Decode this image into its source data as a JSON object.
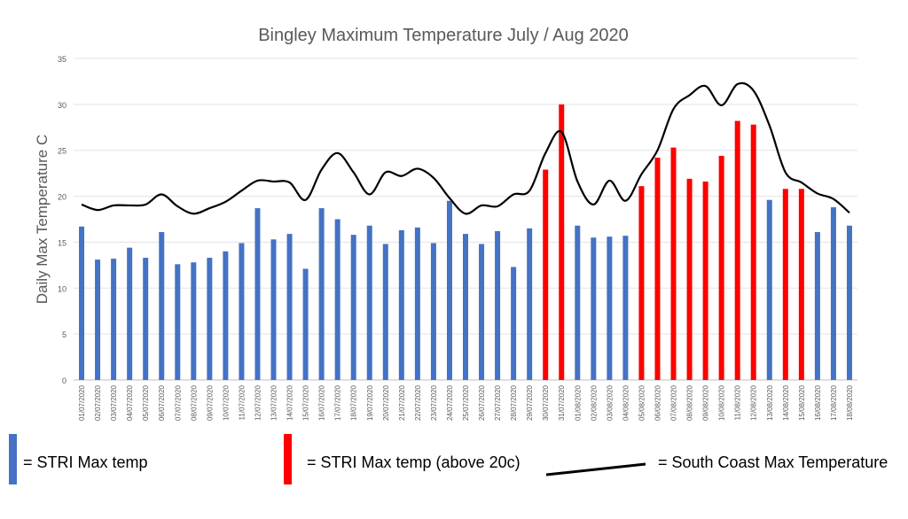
{
  "chart_data": {
    "type": "bar",
    "title": "Bingley Maximum Temperature July / Aug 2020",
    "xlabel": "",
    "ylabel": "Daily Max Temperature C",
    "ylim": [
      0,
      35
    ],
    "yticks": [
      0,
      5,
      10,
      15,
      20,
      25,
      30,
      35
    ],
    "grid": true,
    "categories": [
      "01/07/2020",
      "02/07/2020",
      "03/07/2020",
      "04/07/2020",
      "05/07/2020",
      "06/07/2020",
      "07/07/2020",
      "08/07/2020",
      "09/07/2020",
      "10/07/2020",
      "11/07/2020",
      "12/07/2020",
      "13/07/2020",
      "14/07/2020",
      "15/07/2020",
      "16/07/2020",
      "17/07/2020",
      "18/07/2020",
      "19/07/2020",
      "20/07/2020",
      "21/07/2020",
      "22/07/2020",
      "23/07/2020",
      "24/07/2020",
      "25/07/2020",
      "26/07/2020",
      "27/07/2020",
      "28/07/2020",
      "29/07/2020",
      "30/07/2020",
      "31/07/2020",
      "01/08/2020",
      "02/08/2020",
      "03/08/2020",
      "04/08/2020",
      "05/08/2020",
      "06/08/2020",
      "07/08/2020",
      "08/08/2020",
      "09/08/2020",
      "10/08/2020",
      "11/08/2020",
      "12/08/2020",
      "13/08/2020",
      "14/08/2020",
      "15/08/2020",
      "16/08/2020",
      "17/08/2020",
      "18/08/2020"
    ],
    "series": [
      {
        "name": "STRI Max temp",
        "kind": "bar",
        "color": "#4472c4",
        "highlight_color": "#ff0000",
        "highlight_threshold": 20,
        "values": [
          16.7,
          13.1,
          13.2,
          14.4,
          13.3,
          16.1,
          12.6,
          12.8,
          13.3,
          14.0,
          14.9,
          18.7,
          15.3,
          15.9,
          12.1,
          18.7,
          17.5,
          15.8,
          16.8,
          14.8,
          16.3,
          16.6,
          14.9,
          19.5,
          15.9,
          14.8,
          16.2,
          12.3,
          16.5,
          22.9,
          30.0,
          16.8,
          15.5,
          15.6,
          15.7,
          21.1,
          24.2,
          25.3,
          21.9,
          21.6,
          24.4,
          28.2,
          27.8,
          19.6,
          20.8,
          20.8,
          16.1,
          18.8,
          16.8
        ]
      },
      {
        "name": "South Coast Max Temperature",
        "kind": "line",
        "color": "#000000",
        "values": [
          19.1,
          18.5,
          19.0,
          19.0,
          19.1,
          20.2,
          18.9,
          18.1,
          18.7,
          19.4,
          20.6,
          21.7,
          21.6,
          21.5,
          19.6,
          22.9,
          24.7,
          22.6,
          20.2,
          22.6,
          22.2,
          23.0,
          22.0,
          19.8,
          18.1,
          19.0,
          18.9,
          20.2,
          20.6,
          24.7,
          27.0,
          21.6,
          19.1,
          21.7,
          19.5,
          22.4,
          25.0,
          29.5,
          31.0,
          32.0,
          29.9,
          32.2,
          31.5,
          27.7,
          22.6,
          21.5,
          20.3,
          19.7,
          18.2
        ]
      }
    ]
  },
  "legend": [
    {
      "label": "= STRI Max temp",
      "color": "#4472c4",
      "kind": "bar"
    },
    {
      "label": "= STRI Max temp (above 20c)",
      "color": "#ff0000",
      "kind": "bar"
    },
    {
      "label": "= South Coast Max Temperature",
      "color": "#000000",
      "kind": "line"
    }
  ]
}
